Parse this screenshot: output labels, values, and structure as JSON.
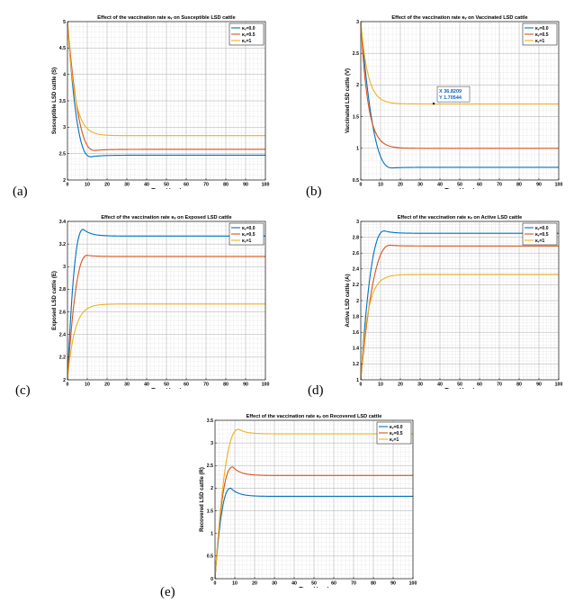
{
  "figure_labels": [
    "(a)",
    "(b)",
    "(c)",
    "(d)",
    "(e)"
  ],
  "chart_data": [
    {
      "type": "line",
      "title": "Effect of the vaccination rate  κᵥ on Susceptible LSD cattle",
      "xlabel": "Time (days)",
      "ylabel": "Susceptible LSD cattle (S)",
      "xlim": [
        0,
        100
      ],
      "ylim": [
        2,
        5
      ],
      "xticks": [
        "0",
        "10",
        "20",
        "30",
        "40",
        "50",
        "60",
        "70",
        "80",
        "90",
        "100"
      ],
      "yticks": [
        "2",
        "2.5",
        "3",
        "3.5",
        "4",
        "4.5",
        "5"
      ],
      "legend_position": "top-right",
      "series": [
        {
          "name": "κᵥ=0.0",
          "color": "#0072BD",
          "start": 5.0,
          "peak": null,
          "steady": 2.47,
          "min": 2.44,
          "min_t": 12
        },
        {
          "name": "κᵥ=0.5",
          "color": "#D95319",
          "start": 5.0,
          "peak": null,
          "steady": 2.58,
          "min": 2.56,
          "min_t": 14
        },
        {
          "name": "κᵥ=1",
          "color": "#EDB120",
          "start": 5.0,
          "peak": null,
          "steady": 2.84,
          "min": null,
          "min_t": null
        }
      ]
    },
    {
      "type": "line",
      "title": "Effect of the vaccination rate  κᵥ on Vaccinated LSD cattle",
      "xlabel": "Time (days)",
      "ylabel": "Vaccinated LSD cattle (V)",
      "xlim": [
        0,
        100
      ],
      "ylim": [
        0.5,
        3
      ],
      "xticks": [
        "0",
        "10",
        "20",
        "30",
        "40",
        "50",
        "60",
        "70",
        "80",
        "90",
        "100"
      ],
      "yticks": [
        "0.5",
        "1",
        "1.5",
        "2",
        "2.5",
        "3"
      ],
      "legend_position": "top-right",
      "datatip": {
        "x_label": "X 36.8209",
        "y_label": "Y 1.70544",
        "x": 36.8209,
        "y": 1.70544
      },
      "series": [
        {
          "name": "κᵥ=0.0",
          "color": "#0072BD",
          "start": 3.0,
          "steady": 0.7,
          "min": 0.69,
          "min_t": 16
        },
        {
          "name": "κᵥ=0.5",
          "color": "#D95319",
          "start": 3.0,
          "steady": 1.0,
          "min": null,
          "min_t": null
        },
        {
          "name": "κᵥ=1",
          "color": "#EDB120",
          "start": 3.0,
          "steady": 1.7,
          "min": null,
          "min_t": null
        }
      ]
    },
    {
      "type": "line",
      "title": "Effect of the vaccination rate  κᵥ on Exposed LSD cattle",
      "xlabel": "Time (days)",
      "ylabel": "Exposed LSD cattle (E)",
      "xlim": [
        0,
        100
      ],
      "ylim": [
        2,
        3.4
      ],
      "xticks": [
        "0",
        "10",
        "20",
        "30",
        "40",
        "50",
        "60",
        "70",
        "80",
        "90",
        "100"
      ],
      "yticks": [
        "2",
        "2.2",
        "2.4",
        "2.6",
        "2.8",
        "3",
        "3.2",
        "3.4"
      ],
      "legend_position": "top-right",
      "series": [
        {
          "name": "κᵥ=0.0",
          "color": "#0072BD",
          "start": 2.0,
          "peak": 3.33,
          "peak_t": 8,
          "steady": 3.27
        },
        {
          "name": "κᵥ=0.5",
          "color": "#D95319",
          "start": 2.0,
          "peak": 3.1,
          "peak_t": 10,
          "steady": 3.09
        },
        {
          "name": "κᵥ=1",
          "color": "#EDB120",
          "start": 2.0,
          "peak": null,
          "peak_t": null,
          "steady": 2.67
        }
      ]
    },
    {
      "type": "line",
      "title": "Effect of the vaccination rate  κᵥ on Active LSD cattle",
      "xlabel": "Time (days)",
      "ylabel": "Active LSD cattle (A)",
      "xlim": [
        0,
        100
      ],
      "ylim": [
        1,
        3
      ],
      "xticks": [
        "0",
        "10",
        "20",
        "30",
        "40",
        "50",
        "60",
        "70",
        "80",
        "90",
        "100"
      ],
      "yticks": [
        "1",
        "1.2",
        "1.4",
        "1.6",
        "1.8",
        "2",
        "2.2",
        "2.4",
        "2.6",
        "2.8",
        "3"
      ],
      "legend_position": "top-right",
      "series": [
        {
          "name": "κᵥ=0.0",
          "color": "#0072BD",
          "start": 1.0,
          "peak": 2.88,
          "peak_t": 12,
          "steady": 2.85
        },
        {
          "name": "κᵥ=0.5",
          "color": "#D95319",
          "start": 1.0,
          "peak": 2.7,
          "peak_t": 15,
          "steady": 2.69
        },
        {
          "name": "κᵥ=1",
          "color": "#EDB120",
          "start": 1.0,
          "peak": null,
          "peak_t": null,
          "steady": 2.33
        }
      ]
    },
    {
      "type": "line",
      "title": "Effect of the vaccination rate  κᵥ on Recovered LSD cattle",
      "xlabel": "Time (days)",
      "ylabel": "Recovered LSD cattle (R)",
      "xlim": [
        0,
        100
      ],
      "ylim": [
        0,
        3.5
      ],
      "xticks": [
        "0",
        "10",
        "20",
        "30",
        "40",
        "50",
        "60",
        "70",
        "80",
        "90",
        "100"
      ],
      "yticks": [
        "0",
        "0.5",
        "1",
        "1.5",
        "2",
        "2.5",
        "3",
        "3.5"
      ],
      "legend_position": "top-right",
      "series": [
        {
          "name": "κᵥ=0.0",
          "color": "#0072BD",
          "start": 0.0,
          "peak": 2.0,
          "peak_t": 8,
          "steady": 1.82
        },
        {
          "name": "κᵥ=0.5",
          "color": "#D95319",
          "start": 0.0,
          "peak": 2.47,
          "peak_t": 9,
          "steady": 2.28
        },
        {
          "name": "κᵥ=1",
          "color": "#EDB120",
          "start": 0.0,
          "peak": 3.3,
          "peak_t": 12,
          "steady": 3.2
        }
      ]
    }
  ]
}
